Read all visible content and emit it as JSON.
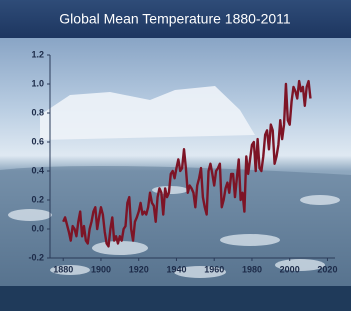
{
  "chart_data": {
    "type": "line",
    "title": "Global Mean Temperature 1880-2011",
    "x": [
      1880,
      1881,
      1882,
      1883,
      1884,
      1885,
      1886,
      1887,
      1888,
      1889,
      1890,
      1891,
      1892,
      1893,
      1894,
      1895,
      1896,
      1897,
      1898,
      1899,
      1900,
      1901,
      1902,
      1903,
      1904,
      1905,
      1906,
      1907,
      1908,
      1909,
      1910,
      1911,
      1912,
      1913,
      1914,
      1915,
      1916,
      1917,
      1918,
      1919,
      1920,
      1921,
      1922,
      1923,
      1924,
      1925,
      1926,
      1927,
      1928,
      1929,
      1930,
      1931,
      1932,
      1933,
      1934,
      1935,
      1936,
      1937,
      1938,
      1939,
      1940,
      1941,
      1942,
      1943,
      1944,
      1945,
      1946,
      1947,
      1948,
      1949,
      1950,
      1951,
      1952,
      1953,
      1954,
      1955,
      1956,
      1957,
      1958,
      1959,
      1960,
      1961,
      1962,
      1963,
      1964,
      1965,
      1966,
      1967,
      1968,
      1969,
      1970,
      1971,
      1972,
      1973,
      1974,
      1975,
      1976,
      1977,
      1978,
      1979,
      1980,
      1981,
      1982,
      1983,
      1984,
      1985,
      1986,
      1987,
      1988,
      1989,
      1990,
      1991,
      1992,
      1993,
      1994,
      1995,
      1996,
      1997,
      1998,
      1999,
      2000,
      2001,
      2002,
      2003,
      2004,
      2005,
      2006,
      2007,
      2008,
      2009,
      2010,
      2011
    ],
    "values": [
      0.05,
      0.08,
      0.03,
      -0.02,
      -0.08,
      0.02,
      0.0,
      -0.05,
      0.05,
      0.12,
      -0.05,
      0.02,
      -0.08,
      -0.1,
      0.0,
      0.05,
      0.12,
      0.15,
      0.0,
      0.08,
      0.15,
      0.1,
      -0.02,
      -0.1,
      -0.12,
      0.0,
      0.08,
      -0.08,
      -0.05,
      -0.1,
      -0.05,
      -0.08,
      0.0,
      0.02,
      0.18,
      0.22,
      0.0,
      -0.08,
      0.05,
      0.08,
      0.12,
      0.18,
      0.1,
      0.12,
      0.1,
      0.15,
      0.25,
      0.18,
      0.16,
      0.05,
      0.22,
      0.28,
      0.25,
      0.1,
      0.28,
      0.22,
      0.25,
      0.38,
      0.4,
      0.35,
      0.42,
      0.48,
      0.4,
      0.42,
      0.55,
      0.42,
      0.25,
      0.3,
      0.28,
      0.25,
      0.15,
      0.3,
      0.35,
      0.42,
      0.22,
      0.15,
      0.1,
      0.4,
      0.45,
      0.38,
      0.3,
      0.4,
      0.42,
      0.45,
      0.15,
      0.2,
      0.28,
      0.32,
      0.25,
      0.38,
      0.38,
      0.22,
      0.35,
      0.48,
      0.2,
      0.25,
      0.12,
      0.5,
      0.38,
      0.48,
      0.58,
      0.6,
      0.4,
      0.62,
      0.42,
      0.4,
      0.5,
      0.65,
      0.68,
      0.55,
      0.72,
      0.68,
      0.45,
      0.5,
      0.58,
      0.75,
      0.62,
      0.72,
      1.0,
      0.75,
      0.72,
      0.88,
      0.98,
      0.95,
      0.9,
      1.02,
      0.95,
      0.98,
      0.85,
      0.98,
      1.02,
      0.9
    ],
    "color": "#7d1426",
    "xlim": [
      1873,
      2024
    ],
    "xticks": [
      1880,
      1900,
      1920,
      1940,
      1960,
      1980,
      2000,
      2020
    ],
    "ylim": [
      -0.2,
      1.2
    ],
    "yticks": [
      -0.2,
      {
        "value": 0,
        "label": "0.0"
      },
      0.2,
      0.4,
      0.6,
      0.8,
      {
        "value": 1,
        "label": "1.0"
      },
      1.2
    ]
  }
}
